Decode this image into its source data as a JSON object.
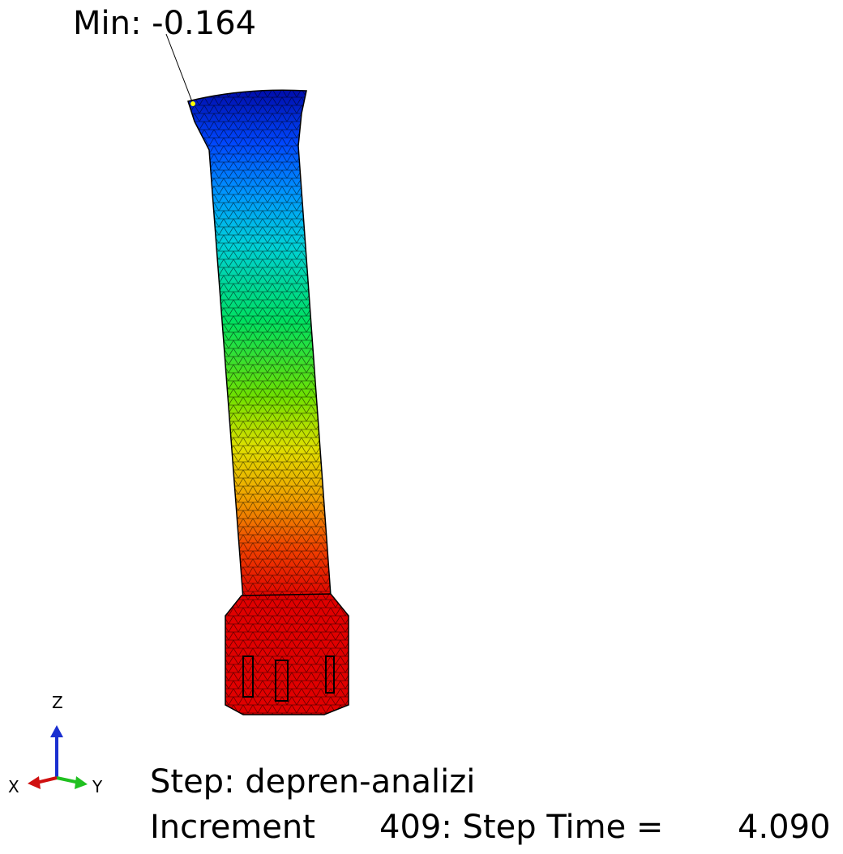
{
  "annotation": {
    "min_label": "Min: -0.164"
  },
  "triad": {
    "z": "Z",
    "x": "X",
    "y": "Y"
  },
  "status": {
    "step": "Step: depren-analizi",
    "increment_label": "Increment",
    "increment_info": "409: Step Time =",
    "step_time": "4.090"
  }
}
